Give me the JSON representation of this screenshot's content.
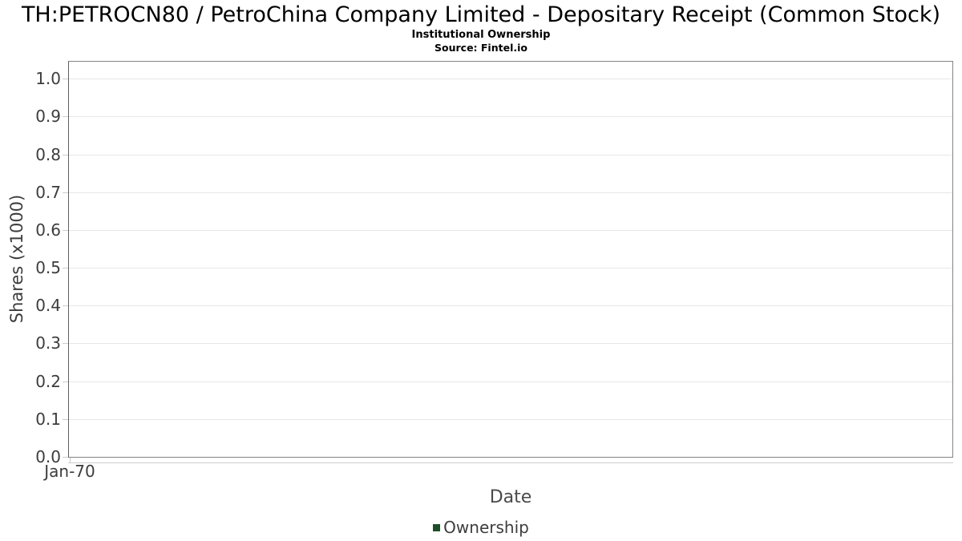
{
  "chart_data": {
    "type": "line",
    "title": "TH:PETROCN80 / PetroChina Company Limited - Depositary Receipt (Common Stock)",
    "subtitle": "Institutional Ownership",
    "source": "Source: Fintel.io",
    "xlabel": "Date",
    "ylabel": "Shares (x1000)",
    "x_tick_labels": [
      "Jan-70"
    ],
    "y_ticks": [
      0.0,
      0.1,
      0.2,
      0.3,
      0.4,
      0.5,
      0.6,
      0.7,
      0.8,
      0.9,
      1.0
    ],
    "y_tick_decimals": 1,
    "ylim": [
      0,
      1.047
    ],
    "xlim_labels": [
      "Jan-70"
    ],
    "grid": "horizontal",
    "plot_background": "#ffffff",
    "legend": {
      "position": "bottom-center",
      "entries": [
        {
          "label": "Ownership",
          "color": "#1e4d2b"
        }
      ]
    },
    "series": [
      {
        "name": "Ownership",
        "color": "#1e4d2b",
        "x": [],
        "values": []
      }
    ]
  },
  "colors": {
    "grid": "#e7e7e7",
    "plot_border": "#848484",
    "axis_line_light": "#cccccc",
    "tick_text": "#3d3d3d",
    "axis_title_text": "#4a4a4a",
    "title_text": "#000000",
    "legend_ownership": "#1e4d2b"
  }
}
